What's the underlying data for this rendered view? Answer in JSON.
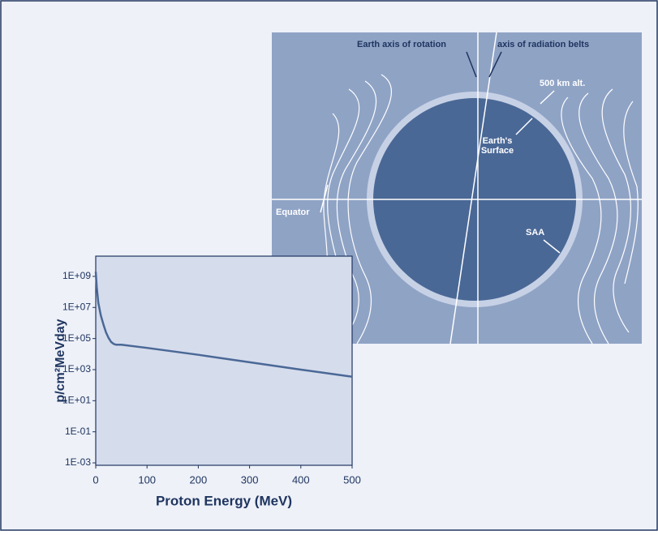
{
  "diagram": {
    "labels": [
      "Earth axis of rotation",
      "axis of radiation belts",
      "500 km alt.",
      "Earth's Surface",
      "Equator",
      "SAA"
    ]
  },
  "chart_data": {
    "type": "line",
    "x_label": "Proton Energy (MeV)",
    "y_label": "p/cm²MeVday",
    "log_y": true,
    "x": [
      0,
      2,
      5,
      10,
      15,
      20,
      25,
      30,
      35,
      40,
      50,
      100,
      200,
      300,
      400,
      500
    ],
    "series": [
      {
        "color": "#4a6896",
        "values": [
          2000000000,
          200000000,
          20000000,
          3000000,
          800000,
          250000,
          110000,
          60000,
          45000,
          40000,
          40000,
          25000,
          9000,
          3000,
          1000,
          350
        ]
      }
    ],
    "xlim": [
      0,
      500
    ],
    "xticks": [
      0,
      100,
      200,
      300,
      400,
      500
    ],
    "ylim": [
      0.0007,
      20000000000
    ],
    "yticks": [
      {
        "value": 0.001,
        "label": "1E-03"
      },
      {
        "value": 0.1,
        "label": "1E-01"
      },
      {
        "value": 10,
        "label": "1E+01"
      },
      {
        "value": 1000,
        "label": "1E+03"
      },
      {
        "value": 100000,
        "label": "1E+05"
      },
      {
        "value": 10000000,
        "label": "1E+07"
      },
      {
        "value": 1000000000,
        "label": "1E+09"
      }
    ]
  }
}
